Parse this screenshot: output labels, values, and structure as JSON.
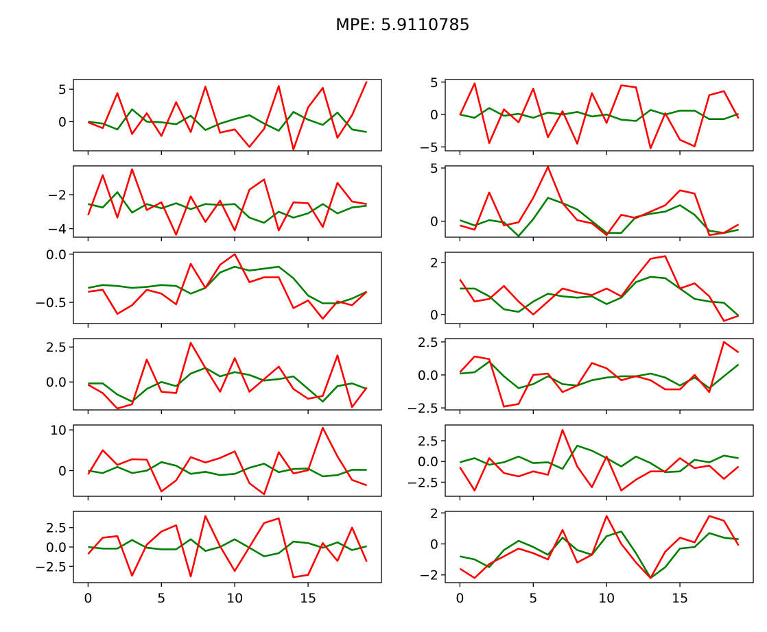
{
  "title": "MPE: 5.9110785",
  "colors": {
    "series_a": "#008000",
    "series_b": "#ff0000",
    "axes": "#000000"
  },
  "chart_data": [
    {
      "type": "line",
      "ylim": [
        -4.5,
        6.5
      ],
      "yticks": [
        0,
        5
      ],
      "ytick_labels": [
        "0",
        "5"
      ],
      "xlim": [
        -1,
        20
      ],
      "x": [
        0,
        1,
        2,
        3,
        4,
        5,
        6,
        7,
        8,
        9,
        10,
        11,
        12,
        13,
        14,
        15,
        16,
        17,
        18,
        19
      ],
      "series": [
        {
          "values": [
            0.0,
            -0.3,
            -1.2,
            1.9,
            0.0,
            -0.1,
            -0.4,
            0.9,
            -1.3,
            -0.3,
            0.4,
            1.0,
            -0.3,
            -1.4,
            1.5,
            0.3,
            -0.5,
            1.4,
            -1.2,
            -1.6
          ]
        },
        {
          "values": [
            -0.1,
            -1.0,
            4.4,
            -1.9,
            1.3,
            -2.2,
            3.0,
            -1.6,
            5.4,
            -1.7,
            -1.2,
            -3.9,
            -1.1,
            5.5,
            -4.3,
            2.2,
            5.2,
            -2.5,
            1.0,
            6.2
          ]
        }
      ]
    },
    {
      "type": "line",
      "ylim": [
        -5.6,
        5.4
      ],
      "yticks": [
        -5,
        0,
        5
      ],
      "ytick_labels": [
        "−5",
        "0",
        "5"
      ],
      "xlim": [
        -1,
        20
      ],
      "x": [
        0,
        1,
        2,
        3,
        4,
        5,
        6,
        7,
        8,
        9,
        10,
        11,
        12,
        13,
        14,
        15,
        16,
        17,
        18,
        19
      ],
      "series": [
        {
          "values": [
            0.0,
            -0.5,
            1.0,
            -0.2,
            0.1,
            -0.5,
            0.3,
            0.0,
            0.4,
            -0.3,
            0.0,
            -0.8,
            -1.0,
            0.7,
            0.0,
            0.6,
            0.6,
            -0.7,
            -0.7,
            0.1
          ]
        },
        {
          "values": [
            -0.1,
            4.8,
            -4.4,
            0.8,
            -1.2,
            4.0,
            -3.5,
            0.5,
            -4.5,
            3.3,
            -1.3,
            4.5,
            4.2,
            -5.2,
            0.2,
            -3.9,
            -4.9,
            3.0,
            3.6,
            -0.6
          ]
        }
      ]
    },
    {
      "type": "line",
      "ylim": [
        -4.5,
        -0.3
      ],
      "yticks": [
        -4,
        -2
      ],
      "ytick_labels": [
        "−4",
        "−2"
      ],
      "xlim": [
        -1,
        20
      ],
      "x": [
        0,
        1,
        2,
        3,
        4,
        5,
        6,
        7,
        8,
        9,
        10,
        11,
        12,
        13,
        14,
        15,
        16,
        17,
        18,
        19
      ],
      "series": [
        {
          "values": [
            -2.55,
            -2.75,
            -1.85,
            -3.05,
            -2.55,
            -2.8,
            -2.5,
            -2.85,
            -2.55,
            -2.6,
            -2.55,
            -3.35,
            -3.65,
            -3.0,
            -3.35,
            -3.1,
            -2.55,
            -3.1,
            -2.75,
            -2.65
          ]
        },
        {
          "values": [
            -3.2,
            -0.85,
            -3.35,
            -0.5,
            -2.9,
            -2.45,
            -4.35,
            -2.1,
            -3.6,
            -2.35,
            -4.1,
            -1.7,
            -1.1,
            -4.1,
            -2.45,
            -2.5,
            -3.9,
            -1.3,
            -2.4,
            -2.55
          ]
        }
      ]
    },
    {
      "type": "line",
      "ylim": [
        -1.5,
        5.2
      ],
      "yticks": [
        0,
        5
      ],
      "ytick_labels": [
        "0",
        "5"
      ],
      "xlim": [
        -1,
        20
      ],
      "x": [
        0,
        1,
        2,
        3,
        4,
        5,
        6,
        7,
        8,
        9,
        10,
        11,
        12,
        13,
        14,
        15,
        16,
        17,
        18,
        19
      ],
      "series": [
        {
          "values": [
            0.1,
            -0.4,
            0.1,
            -0.1,
            -1.4,
            0.2,
            2.2,
            1.7,
            1.1,
            0.0,
            -1.1,
            -1.1,
            0.4,
            0.7,
            0.9,
            1.5,
            0.6,
            -0.9,
            -1.1,
            -0.8
          ]
        },
        {
          "values": [
            -0.4,
            -0.8,
            2.7,
            -0.4,
            -0.1,
            2.2,
            5.1,
            1.7,
            0.1,
            -0.2,
            -1.3,
            0.6,
            0.3,
            0.9,
            1.5,
            2.9,
            2.6,
            -1.3,
            -1.1,
            -0.3
          ]
        }
      ]
    },
    {
      "type": "line",
      "ylim": [
        -0.72,
        0.02
      ],
      "yticks": [
        -0.5,
        0.0
      ],
      "ytick_labels": [
        "−0.5",
        "0.0"
      ],
      "xlim": [
        -1,
        20
      ],
      "x": [
        0,
        1,
        2,
        3,
        4,
        5,
        6,
        7,
        8,
        9,
        10,
        11,
        12,
        13,
        14,
        15,
        16,
        17,
        18,
        19
      ],
      "series": [
        {
          "values": [
            -0.35,
            -0.32,
            -0.33,
            -0.35,
            -0.34,
            -0.32,
            -0.33,
            -0.41,
            -0.35,
            -0.19,
            -0.13,
            -0.17,
            -0.15,
            -0.13,
            -0.25,
            -0.43,
            -0.51,
            -0.51,
            -0.46,
            -0.39
          ]
        },
        {
          "values": [
            -0.39,
            -0.37,
            -0.62,
            -0.53,
            -0.37,
            -0.41,
            -0.52,
            -0.1,
            -0.35,
            -0.11,
            0.0,
            -0.29,
            -0.24,
            -0.24,
            -0.56,
            -0.48,
            -0.67,
            -0.49,
            -0.53,
            -0.39
          ]
        }
      ]
    },
    {
      "type": "line",
      "ylim": [
        -0.35,
        2.4
      ],
      "yticks": [
        0,
        2
      ],
      "ytick_labels": [
        "0",
        "2"
      ],
      "xlim": [
        -1,
        20
      ],
      "x": [
        0,
        1,
        2,
        3,
        4,
        5,
        6,
        7,
        8,
        9,
        10,
        11,
        12,
        13,
        14,
        15,
        16,
        17,
        18,
        19
      ],
      "series": [
        {
          "values": [
            1.0,
            1.0,
            0.7,
            0.2,
            0.1,
            0.5,
            0.8,
            0.7,
            0.65,
            0.7,
            0.4,
            0.65,
            1.25,
            1.45,
            1.4,
            1.0,
            0.6,
            0.5,
            0.45,
            -0.05
          ]
        },
        {
          "values": [
            1.35,
            0.5,
            0.6,
            1.1,
            0.5,
            0.0,
            0.5,
            1.0,
            0.85,
            0.75,
            1.0,
            0.7,
            1.45,
            2.15,
            2.25,
            1.0,
            1.2,
            0.7,
            -0.25,
            -0.05
          ]
        }
      ]
    },
    {
      "type": "line",
      "ylim": [
        -2.0,
        3.1
      ],
      "yticks": [
        0.0,
        2.5
      ],
      "ytick_labels": [
        "0.0",
        "2.5"
      ],
      "xlim": [
        -1,
        20
      ],
      "x": [
        0,
        1,
        2,
        3,
        4,
        5,
        6,
        7,
        8,
        9,
        10,
        11,
        12,
        13,
        14,
        15,
        16,
        17,
        18,
        19
      ],
      "series": [
        {
          "values": [
            -0.1,
            -0.1,
            -0.9,
            -1.4,
            -0.5,
            0.0,
            -0.3,
            0.6,
            1.0,
            0.4,
            0.7,
            0.5,
            0.1,
            0.2,
            0.4,
            -0.5,
            -1.4,
            -0.3,
            -0.1,
            -0.5
          ]
        },
        {
          "values": [
            -0.2,
            -0.8,
            -1.9,
            -1.6,
            1.6,
            -0.7,
            -0.8,
            2.8,
            1.0,
            -0.7,
            1.7,
            -0.7,
            0.2,
            1.1,
            -0.5,
            -1.2,
            -1.0,
            1.9,
            -1.8,
            -0.4
          ]
        }
      ]
    },
    {
      "type": "line",
      "ylim": [
        -2.65,
        2.75
      ],
      "yticks": [
        -2.5,
        0.0,
        2.5
      ],
      "ytick_labels": [
        "−2.5",
        "0.0",
        "2.5"
      ],
      "xlim": [
        -1,
        20
      ],
      "x": [
        0,
        1,
        2,
        3,
        4,
        5,
        6,
        7,
        8,
        9,
        10,
        11,
        12,
        13,
        14,
        15,
        16,
        17,
        18,
        19
      ],
      "series": [
        {
          "values": [
            0.1,
            0.2,
            1.0,
            -0.1,
            -1.0,
            -0.7,
            -0.1,
            -0.7,
            -0.8,
            -0.4,
            -0.2,
            -0.1,
            -0.1,
            0.1,
            -0.2,
            -0.8,
            -0.2,
            -1.0,
            -0.1,
            0.8
          ]
        },
        {
          "values": [
            0.2,
            1.4,
            1.2,
            -2.4,
            -2.2,
            0.0,
            0.1,
            -1.3,
            -0.8,
            0.9,
            0.5,
            -0.4,
            -0.1,
            -0.4,
            -1.1,
            -1.1,
            0.0,
            -1.3,
            2.5,
            1.7
          ]
        }
      ]
    },
    {
      "type": "line",
      "ylim": [
        -6.3,
        11.2
      ],
      "yticks": [
        0,
        10
      ],
      "ytick_labels": [
        "0",
        "10"
      ],
      "xlim": [
        -1,
        20
      ],
      "x": [
        0,
        1,
        2,
        3,
        4,
        5,
        6,
        7,
        8,
        9,
        10,
        11,
        12,
        13,
        14,
        15,
        16,
        17,
        18,
        19
      ],
      "series": [
        {
          "values": [
            0.0,
            -0.6,
            0.9,
            -0.6,
            0.0,
            2.1,
            1.2,
            -0.8,
            -0.3,
            -1.1,
            -0.8,
            0.7,
            1.7,
            -0.4,
            0.4,
            0.5,
            -1.4,
            -1.1,
            0.2,
            0.2
          ]
        },
        {
          "values": [
            -0.9,
            5.0,
            1.4,
            2.8,
            2.7,
            -5.1,
            -2.4,
            3.3,
            2.0,
            3.1,
            4.7,
            -3.1,
            -5.8,
            4.5,
            -0.7,
            0.1,
            10.5,
            3.5,
            -2.3,
            -3.6
          ]
        }
      ]
    },
    {
      "type": "line",
      "ylim": [
        -4.2,
        4.4
      ],
      "yticks": [
        -2.5,
        0.0,
        2.5
      ],
      "ytick_labels": [
        "−2.5",
        "0.0",
        "2.5"
      ],
      "xlim": [
        -1,
        20
      ],
      "x": [
        0,
        1,
        2,
        3,
        4,
        5,
        6,
        7,
        8,
        9,
        10,
        11,
        12,
        13,
        14,
        15,
        16,
        17,
        18,
        19
      ],
      "series": [
        {
          "values": [
            -0.1,
            0.4,
            -0.4,
            -0.1,
            0.6,
            -0.2,
            -0.1,
            -0.9,
            1.9,
            1.3,
            0.4,
            -0.6,
            0.6,
            -0.2,
            -1.3,
            -1.2,
            0.2,
            -0.1,
            0.7,
            0.4
          ]
        },
        {
          "values": [
            -0.7,
            -3.5,
            0.4,
            -1.4,
            -1.8,
            -1.2,
            -1.6,
            3.8,
            -0.6,
            -3.1,
            0.6,
            -3.5,
            -2.2,
            -1.2,
            -1.2,
            0.4,
            -0.8,
            -0.5,
            -2.1,
            -0.6
          ]
        }
      ]
    },
    {
      "type": "line",
      "ylim": [
        -4.6,
        4.6
      ],
      "yticks": [
        -2.5,
        0.0,
        2.5
      ],
      "ytick_labels": [
        "−2.5",
        "0.0",
        "2.5"
      ],
      "xlim": [
        -1,
        20
      ],
      "x": [
        0,
        1,
        2,
        3,
        4,
        5,
        6,
        7,
        8,
        9,
        10,
        11,
        12,
        13,
        14,
        15,
        16,
        17,
        18,
        19
      ],
      "series": [
        {
          "values": [
            0.0,
            -0.2,
            -0.2,
            0.9,
            -0.1,
            -0.3,
            -0.3,
            1.0,
            -0.5,
            0.0,
            1.0,
            -0.1,
            -1.2,
            -0.8,
            0.7,
            0.5,
            -0.1,
            0.6,
            -0.4,
            0.1
          ]
        },
        {
          "values": [
            -0.9,
            1.2,
            1.4,
            -3.7,
            0.3,
            2.0,
            2.8,
            -3.8,
            4.0,
            0.1,
            -3.1,
            0.0,
            3.1,
            3.7,
            -3.9,
            -3.6,
            0.5,
            -1.8,
            2.5,
            -1.9
          ]
        }
      ]
    },
    {
      "type": "line",
      "ylim": [
        -2.5,
        2.1
      ],
      "yticks": [
        -2,
        0,
        2
      ],
      "ytick_labels": [
        "−2",
        "0",
        "2"
      ],
      "xlim": [
        -1,
        20
      ],
      "x": [
        0,
        1,
        2,
        3,
        4,
        5,
        6,
        7,
        8,
        9,
        10,
        11,
        12,
        13,
        14,
        15,
        16,
        17,
        18,
        19
      ],
      "series": [
        {
          "values": [
            -0.8,
            -1.0,
            -1.5,
            -0.4,
            0.2,
            -0.2,
            -0.7,
            0.4,
            -0.4,
            -0.7,
            0.5,
            0.8,
            -0.6,
            -2.2,
            -1.5,
            -0.3,
            -0.2,
            0.7,
            0.4,
            0.3
          ]
        },
        {
          "values": [
            -1.6,
            -2.2,
            -1.3,
            -0.8,
            -0.3,
            -0.6,
            -1.0,
            0.9,
            -1.2,
            -0.7,
            1.8,
            0.0,
            -1.2,
            -2.2,
            -0.5,
            0.4,
            0.1,
            1.8,
            1.5,
            -0.1
          ]
        }
      ]
    }
  ],
  "bottom_x_ticks": [
    {
      "value": 0,
      "label": "0"
    },
    {
      "value": 5,
      "label": "5"
    },
    {
      "value": 10,
      "label": "10"
    },
    {
      "value": 15,
      "label": "15"
    }
  ]
}
